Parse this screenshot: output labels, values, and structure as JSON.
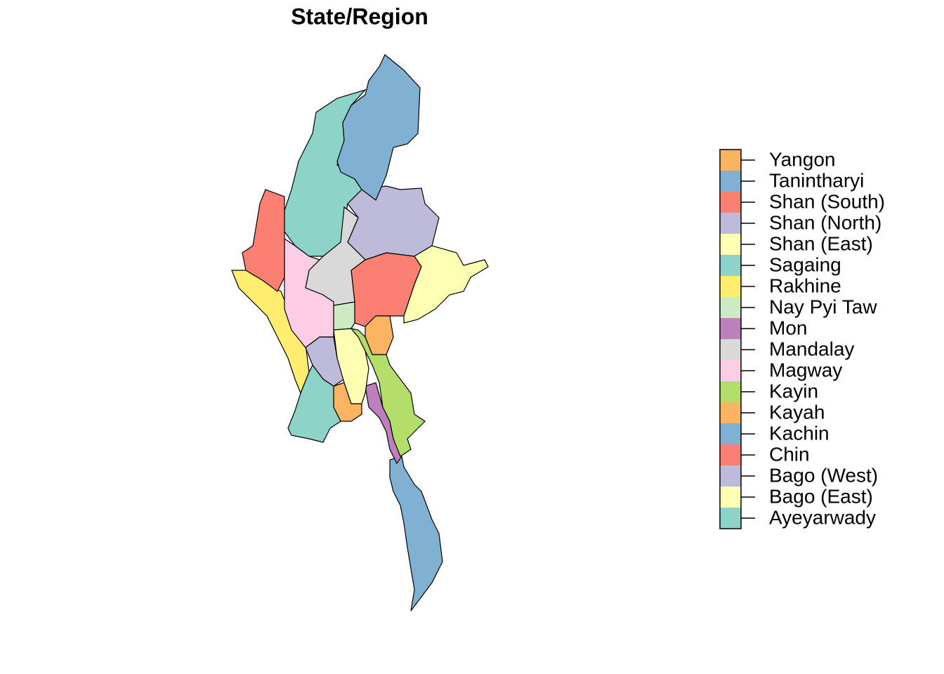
{
  "title": "State/Region",
  "legend": [
    {
      "name": "Yangon",
      "color": "#fdb462"
    },
    {
      "name": "Tanintharyi",
      "color": "#80b1d3"
    },
    {
      "name": "Shan (South)",
      "color": "#fb8072"
    },
    {
      "name": "Shan (North)",
      "color": "#bebada"
    },
    {
      "name": "Shan (East)",
      "color": "#ffffb3"
    },
    {
      "name": "Sagaing",
      "color": "#8dd3c7"
    },
    {
      "name": "Rakhine",
      "color": "#ffed6f"
    },
    {
      "name": "Nay Pyi Taw",
      "color": "#ccebc5"
    },
    {
      "name": "Mon",
      "color": "#bc80bd"
    },
    {
      "name": "Mandalay",
      "color": "#d9d9d9"
    },
    {
      "name": "Magway",
      "color": "#fccde5"
    },
    {
      "name": "Kayin",
      "color": "#b3de69"
    },
    {
      "name": "Kayah",
      "color": "#fdb462"
    },
    {
      "name": "Kachin",
      "color": "#80b1d3"
    },
    {
      "name": "Chin",
      "color": "#fb8072"
    },
    {
      "name": "Bago (West)",
      "color": "#bebada"
    },
    {
      "name": "Bago (East)",
      "color": "#ffffb3"
    },
    {
      "name": "Ayeyarwady",
      "color": "#8dd3c7"
    }
  ]
}
